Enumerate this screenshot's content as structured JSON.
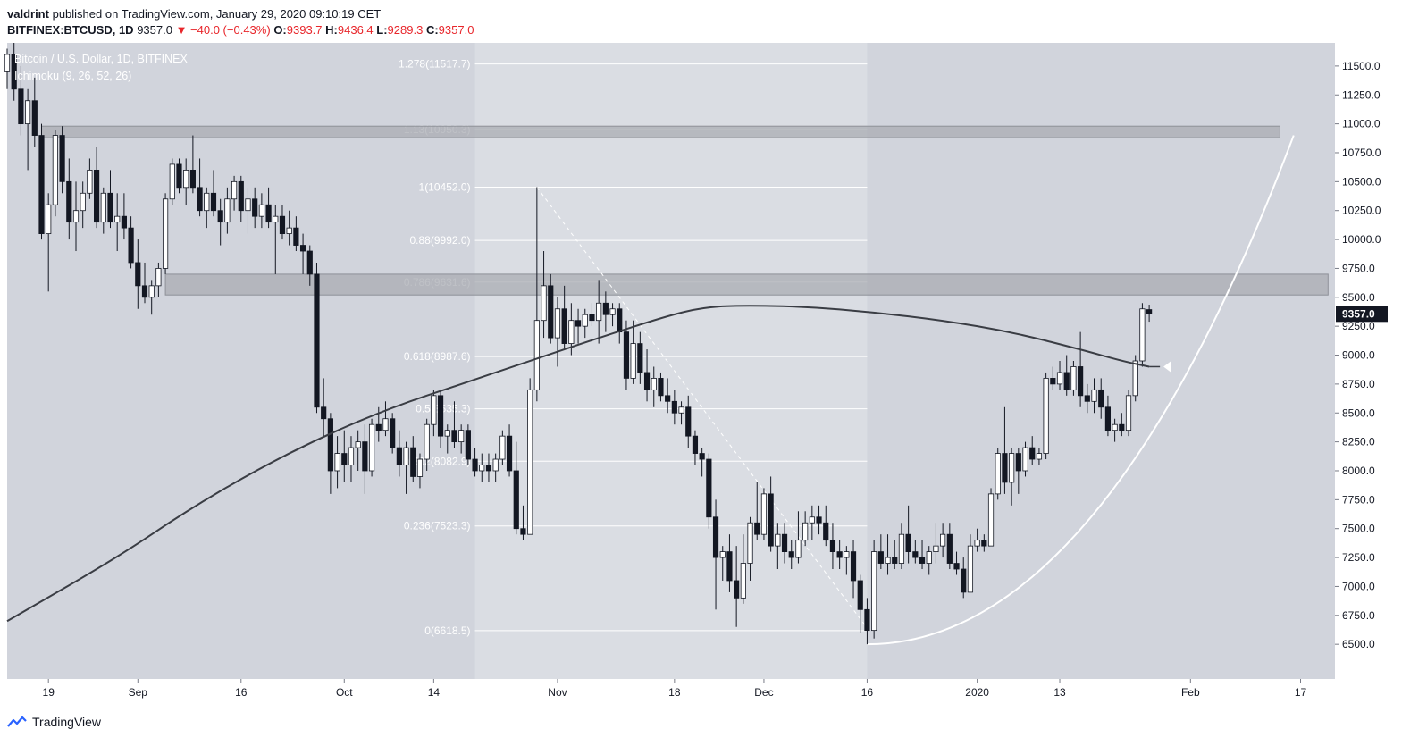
{
  "header": {
    "author": "valdrint",
    "published_text": "published on TradingView.com, January 29, 2020 09:10:19 CET",
    "symbol": "BITFINEX:BTCUSD, 1D",
    "last": "9357.0",
    "change": "▼ −40.0 (−0.43%)",
    "o_label": "O:",
    "o": "9393.7",
    "h_label": "H:",
    "h": "9436.4",
    "l_label": "L:",
    "l": "9289.3",
    "c_label": "C:",
    "c": "9357.0"
  },
  "legend": {
    "title": "Bitcoin / U.S. Dollar, 1D, BITFINEX",
    "indicator": "Ichimoku (9, 26, 52, 26)"
  },
  "footer": {
    "brand": "TradingView"
  },
  "colors": {
    "bg": "#d1d4dc",
    "fib_zone": "#dadde3",
    "axis_bg": "#ffffff",
    "candle_up": "#ffffff",
    "candle_down": "#131722",
    "ma": "#3a3d44",
    "fib_line": "#ffffff",
    "box": "#a9acb3",
    "curve": "#ffffff"
  },
  "chart_data": {
    "type": "candlestick",
    "symbol": "BITFINEX:BTCUSD",
    "timeframe": "1D",
    "ylim": [
      6200,
      11700
    ],
    "y_ticks": [
      "11500.0",
      "11250.0",
      "11000.0",
      "10750.0",
      "10500.0",
      "10250.0",
      "10000.0",
      "9750.0",
      "9500.0",
      "9250.0",
      "9000.0",
      "8750.0",
      "8500.0",
      "8250.0",
      "8000.0",
      "7750.0",
      "7500.0",
      "7250.0",
      "7000.0",
      "6750.0",
      "6500.0"
    ],
    "y_tick_values": [
      11500,
      11250,
      11000,
      10750,
      10500,
      10250,
      10000,
      9750,
      9500,
      9250,
      9000,
      8750,
      8500,
      8250,
      8000,
      7750,
      7500,
      7250,
      7000,
      6750,
      6500
    ],
    "last_price_label": "9357.0",
    "last_price": 9357.0,
    "x_ticks": [
      {
        "label": "19",
        "day": 0
      },
      {
        "label": "Sep",
        "day": 13
      },
      {
        "label": "16",
        "day": 28
      },
      {
        "label": "Oct",
        "day": 43
      },
      {
        "label": "14",
        "day": 56
      },
      {
        "label": "Nov",
        "day": 74
      },
      {
        "label": "18",
        "day": 91
      },
      {
        "label": "Dec",
        "day": 104
      },
      {
        "label": "16",
        "day": 119
      },
      {
        "label": "2020",
        "day": 135
      },
      {
        "label": "13",
        "day": 147
      },
      {
        "label": "Feb",
        "day": 166
      },
      {
        "label": "17",
        "day": 182
      }
    ],
    "x_range_days": [
      -6,
      187
    ],
    "fib_levels": [
      {
        "label": "1.278(11517.7)",
        "value": 11517.7
      },
      {
        "label": "1.13(10950.3)",
        "value": 10950.3
      },
      {
        "label": "1(10452.0)",
        "value": 10452.0
      },
      {
        "label": "0.88(9992.0)",
        "value": 9992.0
      },
      {
        "label": "0.786(9631.6)",
        "value": 9631.6
      },
      {
        "label": "0.618(8987.6)",
        "value": 8987.6
      },
      {
        "label": "0.5(8535.3)",
        "value": 8535.3
      },
      {
        "label": "0.382(8082.9)",
        "value": 8082.9
      },
      {
        "label": "0.236(7523.3)",
        "value": 7523.3
      },
      {
        "label": "0(6618.5)",
        "value": 6618.5
      }
    ],
    "fib_day_range": [
      62,
      119
    ],
    "zones": [
      {
        "y_low": 10880,
        "y_high": 10980,
        "day_start": -1,
        "day_end": 179
      },
      {
        "y_low": 9520,
        "y_high": 9700,
        "day_start": 17,
        "day_end": 186
      }
    ],
    "candles": [
      [
        -6,
        11450,
        11650,
        11300,
        11600
      ],
      [
        -5,
        11600,
        11700,
        11200,
        11300
      ],
      [
        -4,
        11300,
        11500,
        10900,
        11000
      ],
      [
        -3,
        11000,
        11300,
        10600,
        11200
      ],
      [
        -2,
        11200,
        11400,
        10800,
        10900
      ],
      [
        -1,
        10900,
        11000,
        10000,
        10050
      ],
      [
        0,
        10050,
        10400,
        9550,
        10300
      ],
      [
        1,
        10300,
        10950,
        10200,
        10900
      ],
      [
        2,
        10900,
        10980,
        10400,
        10500
      ],
      [
        3,
        10500,
        10700,
        10000,
        10150
      ],
      [
        4,
        10150,
        10500,
        9900,
        10250
      ],
      [
        5,
        10250,
        10500,
        10100,
        10400
      ],
      [
        6,
        10400,
        10700,
        10350,
        10600
      ],
      [
        7,
        10600,
        10800,
        10100,
        10150
      ],
      [
        8,
        10150,
        10450,
        10050,
        10400
      ],
      [
        9,
        10400,
        10600,
        10100,
        10150
      ],
      [
        10,
        10150,
        10400,
        9900,
        10200
      ],
      [
        11,
        10200,
        10400,
        10000,
        10100
      ],
      [
        12,
        10100,
        10200,
        9750,
        9800
      ],
      [
        13,
        9800,
        10000,
        9400,
        9600
      ],
      [
        14,
        9600,
        9800,
        9450,
        9500
      ],
      [
        15,
        9500,
        9650,
        9350,
        9600
      ],
      [
        16,
        9600,
        9800,
        9500,
        9750
      ],
      [
        17,
        9750,
        10400,
        9700,
        10350
      ],
      [
        18,
        10350,
        10700,
        10300,
        10650
      ],
      [
        19,
        10650,
        10700,
        10400,
        10450
      ],
      [
        20,
        10450,
        10700,
        10300,
        10600
      ],
      [
        21,
        10600,
        10900,
        10400,
        10450
      ],
      [
        22,
        10450,
        10700,
        10200,
        10250
      ],
      [
        23,
        10250,
        10450,
        10100,
        10400
      ],
      [
        24,
        10400,
        10600,
        10200,
        10250
      ],
      [
        25,
        10250,
        10350,
        9950,
        10150
      ],
      [
        26,
        10150,
        10450,
        10050,
        10350
      ],
      [
        27,
        10350,
        10550,
        10250,
        10500
      ],
      [
        28,
        10500,
        10550,
        10150,
        10250
      ],
      [
        29,
        10250,
        10450,
        10050,
        10350
      ],
      [
        30,
        10350,
        10450,
        10100,
        10200
      ],
      [
        31,
        10200,
        10400,
        10100,
        10300
      ],
      [
        32,
        10300,
        10450,
        10100,
        10150
      ],
      [
        33,
        10150,
        10300,
        9700,
        10200
      ],
      [
        34,
        10200,
        10300,
        10000,
        10050
      ],
      [
        35,
        10050,
        10250,
        9950,
        10100
      ],
      [
        36,
        10100,
        10200,
        9900,
        9950
      ],
      [
        37,
        9950,
        10050,
        9700,
        9900
      ],
      [
        38,
        9900,
        9950,
        9600,
        9700
      ],
      [
        39,
        9700,
        9800,
        8500,
        8550
      ],
      [
        40,
        8550,
        8800,
        8300,
        8450
      ],
      [
        41,
        8450,
        8500,
        7800,
        8000
      ],
      [
        42,
        8000,
        8300,
        7850,
        8150
      ],
      [
        43,
        8150,
        8350,
        7900,
        8050
      ],
      [
        44,
        8050,
        8300,
        7900,
        8200
      ],
      [
        45,
        8200,
        8350,
        8000,
        8250
      ],
      [
        46,
        8250,
        8400,
        7800,
        8000
      ],
      [
        47,
        8000,
        8450,
        7950,
        8400
      ],
      [
        48,
        8400,
        8550,
        8250,
        8350
      ],
      [
        49,
        8350,
        8600,
        8300,
        8450
      ],
      [
        50,
        8450,
        8500,
        8150,
        8200
      ],
      [
        51,
        8200,
        8350,
        7950,
        8050
      ],
      [
        52,
        8050,
        8250,
        7800,
        8200
      ],
      [
        53,
        8200,
        8300,
        7900,
        7950
      ],
      [
        54,
        7950,
        8150,
        7850,
        8100
      ],
      [
        55,
        8100,
        8450,
        8000,
        8400
      ],
      [
        56,
        8400,
        8700,
        8300,
        8650
      ],
      [
        57,
        8650,
        8700,
        8200,
        8300
      ],
      [
        58,
        8300,
        8400,
        8150,
        8350
      ],
      [
        59,
        8350,
        8600,
        8200,
        8250
      ],
      [
        60,
        8250,
        8400,
        8150,
        8350
      ],
      [
        61,
        8350,
        8400,
        8050,
        8100
      ],
      [
        62,
        8100,
        8200,
        7950,
        8000
      ],
      [
        63,
        8000,
        8150,
        7900,
        8050
      ],
      [
        64,
        8050,
        8150,
        7900,
        8000
      ],
      [
        65,
        8000,
        8150,
        7900,
        8100
      ],
      [
        66,
        8100,
        8350,
        8050,
        8300
      ],
      [
        67,
        8300,
        8400,
        7950,
        8000
      ],
      [
        68,
        8000,
        8250,
        7450,
        7500
      ],
      [
        69,
        7500,
        7700,
        7400,
        7450
      ],
      [
        70,
        7450,
        8800,
        7450,
        8700
      ],
      [
        71,
        8700,
        10452,
        8600,
        9300
      ],
      [
        72,
        9300,
        9900,
        9150,
        9600
      ],
      [
        73,
        9600,
        9700,
        9100,
        9150
      ],
      [
        74,
        9150,
        9500,
        8900,
        9400
      ],
      [
        75,
        9400,
        9600,
        9050,
        9100
      ],
      [
        76,
        9100,
        9450,
        9000,
        9300
      ],
      [
        77,
        9300,
        9400,
        9100,
        9250
      ],
      [
        78,
        9250,
        9400,
        9150,
        9350
      ],
      [
        79,
        9350,
        9450,
        9250,
        9300
      ],
      [
        80,
        9300,
        9650,
        9100,
        9450
      ],
      [
        81,
        9450,
        9550,
        9200,
        9350
      ],
      [
        82,
        9350,
        9450,
        9250,
        9400
      ],
      [
        83,
        9400,
        9450,
        9100,
        9200
      ],
      [
        84,
        9200,
        9300,
        8700,
        8800
      ],
      [
        85,
        8800,
        9300,
        8750,
        9100
      ],
      [
        86,
        9100,
        9200,
        8750,
        8850
      ],
      [
        87,
        8850,
        9050,
        8600,
        8700
      ],
      [
        88,
        8700,
        8900,
        8550,
        8800
      ],
      [
        89,
        8800,
        8850,
        8600,
        8650
      ],
      [
        90,
        8650,
        8800,
        8500,
        8600
      ],
      [
        91,
        8600,
        8700,
        8400,
        8500
      ],
      [
        92,
        8500,
        8600,
        8400,
        8550
      ],
      [
        93,
        8550,
        8650,
        8200,
        8300
      ],
      [
        94,
        8300,
        8350,
        8050,
        8150
      ],
      [
        95,
        8150,
        8200,
        7950,
        8100
      ],
      [
        96,
        8100,
        8150,
        7500,
        7600
      ],
      [
        97,
        7600,
        7750,
        6800,
        7250
      ],
      [
        98,
        7250,
        7350,
        7050,
        7300
      ],
      [
        99,
        7300,
        7450,
        6950,
        7050
      ],
      [
        100,
        7050,
        7350,
        6650,
        6900
      ],
      [
        101,
        6900,
        7450,
        6850,
        7200
      ],
      [
        102,
        7200,
        7600,
        7050,
        7550
      ],
      [
        103,
        7550,
        7900,
        7400,
        7450
      ],
      [
        104,
        7450,
        7850,
        7400,
        7800
      ],
      [
        105,
        7800,
        7950,
        7300,
        7350
      ],
      [
        106,
        7350,
        7550,
        7150,
        7450
      ],
      [
        107,
        7450,
        7550,
        7200,
        7300
      ],
      [
        108,
        7300,
        7400,
        7150,
        7250
      ],
      [
        109,
        7250,
        7650,
        7200,
        7400
      ],
      [
        110,
        7400,
        7650,
        7350,
        7550
      ],
      [
        111,
        7550,
        7700,
        7400,
        7600
      ],
      [
        112,
        7600,
        7700,
        7450,
        7550
      ],
      [
        113,
        7550,
        7700,
        7350,
        7400
      ],
      [
        114,
        7400,
        7550,
        7150,
        7300
      ],
      [
        115,
        7300,
        7400,
        7150,
        7250
      ],
      [
        116,
        7250,
        7350,
        7100,
        7300
      ],
      [
        117,
        7300,
        7400,
        6900,
        7050
      ],
      [
        118,
        7050,
        7100,
        6600,
        6800
      ],
      [
        119,
        6800,
        6900,
        6500,
        6620
      ],
      [
        120,
        6620,
        7400,
        6550,
        7300
      ],
      [
        121,
        7300,
        7450,
        7150,
        7200
      ],
      [
        122,
        7200,
        7450,
        7100,
        7250
      ],
      [
        123,
        7250,
        7400,
        7150,
        7200
      ],
      [
        124,
        7200,
        7550,
        7150,
        7450
      ],
      [
        125,
        7450,
        7700,
        7200,
        7300
      ],
      [
        126,
        7300,
        7400,
        7200,
        7250
      ],
      [
        127,
        7250,
        7400,
        7150,
        7200
      ],
      [
        128,
        7200,
        7350,
        7100,
        7300
      ],
      [
        129,
        7300,
        7550,
        7200,
        7350
      ],
      [
        130,
        7350,
        7550,
        7250,
        7450
      ],
      [
        131,
        7450,
        7550,
        7150,
        7200
      ],
      [
        132,
        7200,
        7300,
        7100,
        7150
      ],
      [
        133,
        7150,
        7250,
        6900,
        6950
      ],
      [
        134,
        6950,
        7450,
        6950,
        7350
      ],
      [
        135,
        7350,
        7500,
        7300,
        7400
      ],
      [
        136,
        7400,
        7450,
        7300,
        7350
      ],
      [
        137,
        7350,
        7850,
        7350,
        7800
      ],
      [
        138,
        7800,
        8200,
        7750,
        8150
      ],
      [
        139,
        8150,
        8550,
        7800,
        7900
      ],
      [
        140,
        7900,
        8200,
        7700,
        8150
      ],
      [
        141,
        8150,
        8200,
        7800,
        8000
      ],
      [
        142,
        8000,
        8250,
        7950,
        8200
      ],
      [
        143,
        8200,
        8300,
        8050,
        8100
      ],
      [
        144,
        8100,
        8200,
        8050,
        8150
      ],
      [
        145,
        8150,
        8850,
        8100,
        8800
      ],
      [
        146,
        8800,
        8900,
        8700,
        8750
      ],
      [
        147,
        8750,
        8950,
        8700,
        8850
      ],
      [
        148,
        8850,
        9000,
        8650,
        8700
      ],
      [
        149,
        8700,
        8950,
        8650,
        8900
      ],
      [
        150,
        8900,
        9200,
        8550,
        8650
      ],
      [
        151,
        8650,
        8750,
        8500,
        8600
      ],
      [
        152,
        8600,
        8800,
        8500,
        8700
      ],
      [
        153,
        8700,
        8800,
        8450,
        8550
      ],
      [
        154,
        8550,
        8650,
        8300,
        8350
      ],
      [
        155,
        8350,
        8450,
        8250,
        8400
      ],
      [
        156,
        8400,
        8500,
        8300,
        8350
      ],
      [
        157,
        8350,
        8700,
        8300,
        8650
      ],
      [
        158,
        8650,
        9000,
        8600,
        8950
      ],
      [
        159,
        8950,
        9450,
        8900,
        9400
      ],
      [
        160,
        9393.7,
        9436.4,
        9289.3,
        9357.0
      ]
    ],
    "moving_average": {
      "days": [
        -6,
        10,
        20,
        30,
        40,
        50,
        60,
        70,
        80,
        90,
        95,
        100,
        110,
        120,
        130,
        140,
        150,
        156,
        160
      ],
      "values": [
        6700,
        7250,
        7650,
        8000,
        8300,
        8550,
        8750,
        8950,
        9150,
        9340,
        9410,
        9430,
        9420,
        9370,
        9300,
        9200,
        9050,
        8950,
        8900
      ]
    },
    "descending_line": {
      "day_start": 71,
      "value_start": 10452,
      "day_end": 119,
      "value_end": 6640
    },
    "parabolic_curve": {
      "day_start": 119,
      "value_start": 6500,
      "day_end": 181,
      "value_end": 10900
    }
  }
}
